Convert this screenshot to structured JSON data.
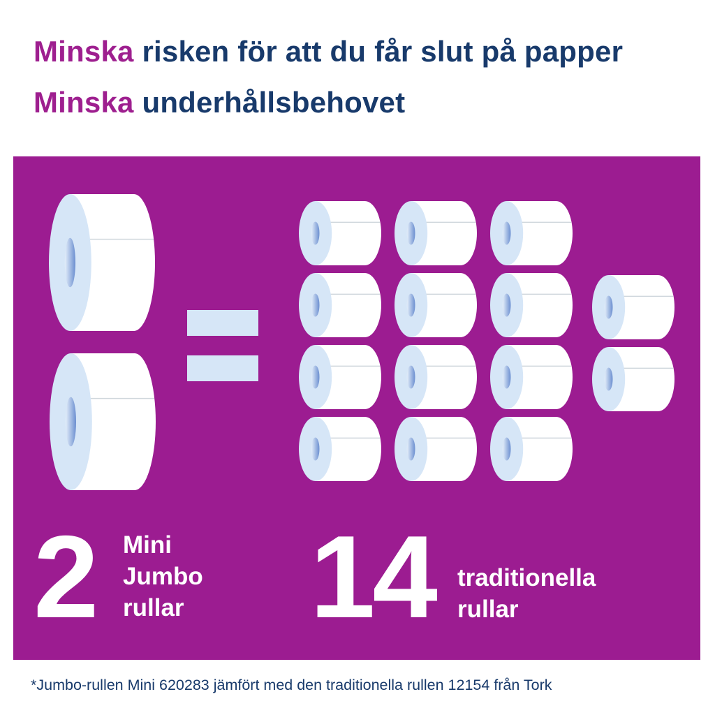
{
  "headline": {
    "line1": {
      "accent": "Minska",
      "rest": "risken för att du får slut på papper"
    },
    "line2": {
      "accent": "Minska",
      "rest": "underhållsbehovet"
    }
  },
  "comparison": {
    "left": {
      "count": "2",
      "label_lines": [
        "Mini",
        "Jumbo",
        "rullar"
      ],
      "roll_type": "mini-jumbo-roll"
    },
    "operator": "equals",
    "right": {
      "count": "14",
      "label_lines": [
        "traditionella",
        "rullar"
      ],
      "roll_type": "traditional-roll"
    }
  },
  "footnote": "*Jumbo-rullen Mini 620283 jämfört med den traditionella rullen 12154 från Tork",
  "colors": {
    "panel": "#9c1c91",
    "accent_text": "#9e1f8f",
    "heading_text": "#183a6b",
    "roll_face": "#d6e6f7",
    "roll_body": "#ffffff"
  }
}
